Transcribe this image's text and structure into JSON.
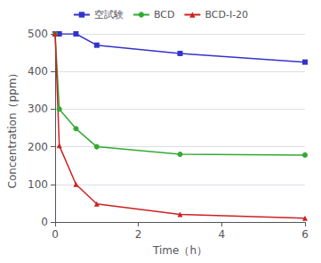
{
  "chart_data": {
    "type": "line",
    "xlabel": "Time（h）",
    "ylabel": "Concentration（ppm）",
    "x": [
      0,
      0.1,
      0.5,
      1.0,
      3.0,
      6.0
    ],
    "series": [
      {
        "name": "空試験",
        "color": "#3333cc",
        "marker": "square",
        "line_style": "solid",
        "values": [
          500,
          500,
          500,
          470,
          448,
          425
        ]
      },
      {
        "name": "BCD",
        "color": "#33aa33",
        "marker": "circle",
        "line_style": "solid",
        "values": [
          500,
          300,
          248,
          200,
          180,
          178
        ]
      },
      {
        "name": "BCD-I-20",
        "color": "#cc2222",
        "marker": "triangle",
        "line_style": "solid",
        "values": [
          500,
          203,
          100,
          48,
          20,
          10
        ]
      }
    ],
    "xlim": [
      0,
      6
    ],
    "ylim": [
      0,
      500
    ],
    "xticks": [
      0,
      2,
      4,
      6
    ],
    "yticks": [
      0,
      100,
      200,
      300,
      400,
      500
    ],
    "grid": "y",
    "legend": "top"
  }
}
